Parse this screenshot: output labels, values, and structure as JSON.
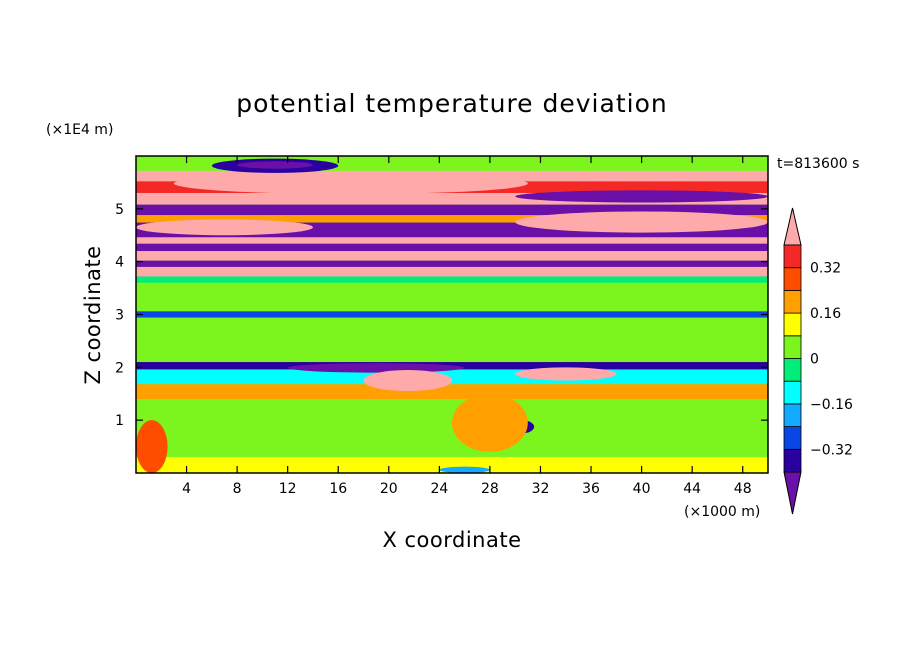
{
  "chart_data": {
    "type": "heatmap",
    "title": "potential temperature deviation",
    "time_label": "t=813600 s",
    "xlabel": "X coordinate",
    "ylabel": "Z coordinate",
    "x_units": "(×1000 m)",
    "y_units": "(×1E4 m)",
    "xlim": [
      0,
      50
    ],
    "ylim": [
      0,
      6
    ],
    "xticks": [
      4,
      8,
      12,
      16,
      20,
      24,
      28,
      32,
      36,
      40,
      44,
      48
    ],
    "yticks": [
      1,
      2,
      3,
      4,
      5
    ],
    "colorbar": {
      "levels": [
        -0.4,
        -0.32,
        -0.24,
        -0.16,
        -0.08,
        0,
        0.08,
        0.16,
        0.24,
        0.32,
        0.4
      ],
      "labels": [
        "0.32",
        "0.16",
        "0",
        "−0.16",
        "−0.32"
      ],
      "label_values": [
        0.32,
        0.16,
        0,
        -0.16,
        -0.32
      ],
      "colors": [
        "#6a0fa8",
        "#2a00a0",
        "#0a46e6",
        "#14aaff",
        "#00ffff",
        "#00ee78",
        "#7cf51e",
        "#ffff00",
        "#ffa000",
        "#ff4d00",
        "#f52828",
        "#ffaaaa"
      ]
    },
    "bands": [
      {
        "z": [
          5.72,
          6.0
        ],
        "value": 0.0
      },
      {
        "z": [
          5.52,
          5.72
        ],
        "value": 0.45
      },
      {
        "z": [
          5.3,
          5.52
        ],
        "value": 0.36
      },
      {
        "z": [
          5.08,
          5.3
        ],
        "value": 0.45
      },
      {
        "z": [
          4.88,
          5.08
        ],
        "value": -0.45
      },
      {
        "z": [
          4.74,
          4.88
        ],
        "value": 0.2
      },
      {
        "z": [
          4.46,
          4.74
        ],
        "value": -0.45
      },
      {
        "z": [
          4.34,
          4.46
        ],
        "value": 0.45
      },
      {
        "z": [
          4.2,
          4.34
        ],
        "value": -0.45
      },
      {
        "z": [
          4.02,
          4.2
        ],
        "value": 0.45
      },
      {
        "z": [
          3.9,
          4.02
        ],
        "value": -0.45
      },
      {
        "z": [
          3.72,
          3.9
        ],
        "value": 0.45
      },
      {
        "z": [
          3.6,
          3.72
        ],
        "value": -0.08
      },
      {
        "z": [
          3.35,
          3.6
        ],
        "value": 0.04
      },
      {
        "z": [
          3.06,
          3.35
        ],
        "value": 0.06
      },
      {
        "z": [
          2.94,
          3.06
        ],
        "value": -0.25
      },
      {
        "z": [
          2.1,
          2.94
        ],
        "value": 0.06
      },
      {
        "z": [
          1.96,
          2.1
        ],
        "value": -0.4
      },
      {
        "z": [
          1.68,
          1.96
        ],
        "value": -0.1
      },
      {
        "z": [
          1.4,
          1.68
        ],
        "value": 0.2
      },
      {
        "z": [
          0.3,
          1.4
        ],
        "value": 0.02
      },
      {
        "z": [
          0.0,
          0.3
        ],
        "value": 0.12
      }
    ],
    "features": [
      {
        "x": [
          3,
          31
        ],
        "z": [
          5.28,
          5.68
        ],
        "value": 0.45
      },
      {
        "x": [
          30,
          50
        ],
        "z": [
          5.12,
          5.35
        ],
        "value": -0.45
      },
      {
        "x": [
          6,
          16
        ],
        "z": [
          5.68,
          5.95
        ],
        "value": -0.4
      },
      {
        "x": [
          8,
          14
        ],
        "z": [
          5.76,
          5.9
        ],
        "value": -0.55
      },
      {
        "x": [
          30,
          50
        ],
        "z": [
          4.55,
          4.95
        ],
        "value": 0.45
      },
      {
        "x": [
          0,
          14
        ],
        "z": [
          4.5,
          4.8
        ],
        "value": 0.45
      },
      {
        "x": [
          12,
          26
        ],
        "z": [
          1.9,
          2.08
        ],
        "value": -0.45
      },
      {
        "x": [
          18,
          25
        ],
        "z": [
          1.55,
          1.95
        ],
        "value": 0.45
      },
      {
        "x": [
          30,
          38
        ],
        "z": [
          1.75,
          2.0
        ],
        "value": 0.45
      },
      {
        "x": [
          0,
          20
        ],
        "z": [
          0.4,
          1.3
        ],
        "value": 0.02
      },
      {
        "x": [
          0,
          2.5
        ],
        "z": [
          0.0,
          1.0
        ],
        "value": 0.3
      },
      {
        "x": [
          29.5,
          31.5
        ],
        "z": [
          0.75,
          1.0
        ],
        "value": -0.4
      },
      {
        "x": [
          24,
          28
        ],
        "z": [
          0.0,
          0.12
        ],
        "value": -0.2
      },
      {
        "x": [
          36,
          50
        ],
        "z": [
          0.6,
          1.3
        ],
        "value": 0.02
      },
      {
        "x": [
          25,
          31
        ],
        "z": [
          0.4,
          1.5
        ],
        "value": 0.2
      }
    ]
  }
}
